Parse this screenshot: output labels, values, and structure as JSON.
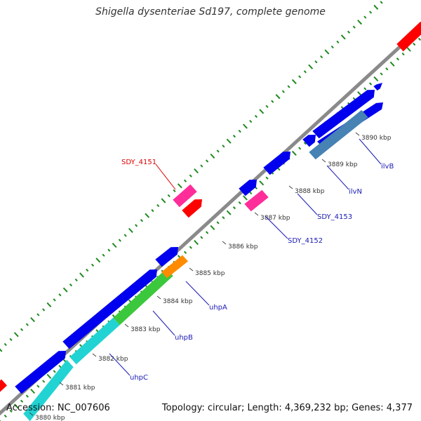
{
  "title": "Shigella dysenteriae Sd197, complete genome",
  "footer": {
    "accession": "Accession: NC_007606",
    "summary": "Topology: circular; Length: 4,369,232 bp; Genes: 4,377"
  },
  "colors": {
    "backbone": "#8a8a8a",
    "gc_tick": "#1f8a1f",
    "gene_cds": "#0000ee",
    "gene_steelblue": "#4682b4",
    "gene_green": "#3cc83c",
    "gene_cyan": "#22d3d3",
    "gene_orange": "#ff8c00",
    "gene_pink": "#ff2d9a",
    "gene_red": "#ff0000",
    "label_blue": "#1a1ab4",
    "label_red": "#dd0000"
  },
  "scale_labels": [
    "3880 kbp",
    "3881 kbp",
    "3882 kbp",
    "3883 kbp",
    "3884 kbp",
    "3885 kbp",
    "3886 kbp",
    "3887 kbp",
    "3888 kbp",
    "3889 kbp",
    "3890 kbp"
  ],
  "gene_labels": [
    {
      "name": "SDY_4151",
      "color": "label_red"
    },
    {
      "name": "ilvB",
      "color": "label_blue"
    },
    {
      "name": "ilvN",
      "color": "label_blue"
    },
    {
      "name": "SDY_4153",
      "color": "label_blue"
    },
    {
      "name": "SDY_4152",
      "color": "label_blue"
    },
    {
      "name": "uhpA",
      "color": "label_blue"
    },
    {
      "name": "uhpB",
      "color": "label_blue"
    },
    {
      "name": "uhpC",
      "color": "label_blue"
    }
  ]
}
